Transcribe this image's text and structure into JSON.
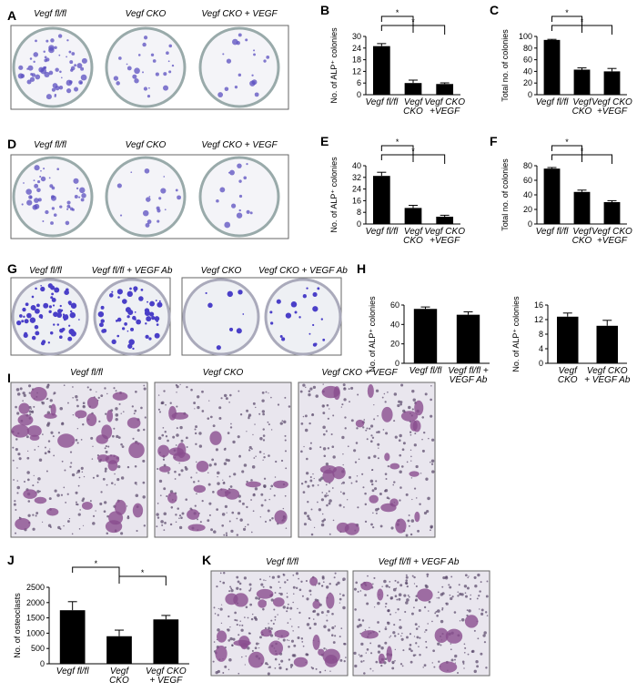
{
  "panels": [
    "A",
    "B",
    "C",
    "D",
    "E",
    "F",
    "G",
    "H",
    "I",
    "J",
    "K"
  ],
  "photos": {
    "A": [
      "Vegf fl/fl",
      "Vegf CKO",
      "Vegf CKO + VEGF"
    ],
    "D": [
      "Vegf fl/fl",
      "Vegf CKO",
      "Vegf CKO + VEGF"
    ],
    "G": [
      "Vegf fl/fl",
      "Vegf fl/fl + VEGF Ab",
      "Vegf CKO",
      "Vegf CKO + VEGF Ab"
    ],
    "I": [
      "Vegf fl/fl",
      "Vegf CKO",
      "Vegf CKO + VEGF"
    ],
    "K": [
      "Vegf fl/fl",
      "Vegf fl/fl + VEGF Ab"
    ]
  },
  "chart_data": [
    {
      "type": "bar",
      "ylabel": "No. of ALP⁺ colonies",
      "categories": [
        "Vegf fl/fl",
        "Vegf\nCKO",
        "Vegf CKO\n+VEGF"
      ],
      "values": [
        25,
        6,
        5.5
      ],
      "errors": [
        1.3,
        1.5,
        0.6
      ],
      "color": "#000000",
      "ylim": [
        0,
        30
      ],
      "yticks": [
        0,
        6,
        12,
        18,
        24,
        30
      ],
      "comparisons": [
        {
          "pair": [
            0,
            1
          ],
          "label": "*"
        },
        {
          "pair": [
            0,
            2
          ],
          "label": "*"
        }
      ]
    },
    {
      "type": "bar",
      "ylabel": "Total no. of colonies",
      "categories": [
        "Vegf fl/fl",
        "Vegf\nCKO",
        "Vegf CKO\n+VEGF"
      ],
      "values": [
        94,
        43,
        40
      ],
      "errors": [
        1,
        3,
        5
      ],
      "color": "#000000",
      "ylim": [
        0,
        100
      ],
      "yticks": [
        0,
        20,
        40,
        60,
        80,
        100
      ],
      "comparisons": [
        {
          "pair": [
            0,
            1
          ],
          "label": "*"
        },
        {
          "pair": [
            0,
            2
          ],
          "label": "*"
        }
      ]
    },
    {
      "type": "bar",
      "ylabel": "No. of ALP⁺ colonies",
      "categories": [
        "Vegf fl/fl",
        "Vegf\nCKO",
        "Vegf CKO\n+VEGF"
      ],
      "values": [
        33,
        11,
        5
      ],
      "errors": [
        2.5,
        1.8,
        1
      ],
      "color": "#000000",
      "ylim": [
        0,
        40
      ],
      "yticks": [
        0,
        8,
        16,
        24,
        32,
        40
      ],
      "comparisons": [
        {
          "pair": [
            0,
            1
          ],
          "label": "*"
        },
        {
          "pair": [
            0,
            2
          ],
          "label": "*"
        }
      ]
    },
    {
      "type": "bar",
      "ylabel": "Total no. of colonies",
      "categories": [
        "Vegf fl/fl",
        "Vegf\nCKO",
        "Vegf CKO\n+VEGF"
      ],
      "values": [
        76,
        44,
        30
      ],
      "errors": [
        1.5,
        2.5,
        2
      ],
      "color": "#000000",
      "ylim": [
        0,
        80
      ],
      "yticks": [
        0,
        20,
        40,
        60,
        80
      ],
      "comparisons": [
        {
          "pair": [
            0,
            1
          ],
          "label": "*"
        },
        {
          "pair": [
            0,
            2
          ],
          "label": "*"
        }
      ]
    },
    {
      "type": "bar",
      "ylabel": "No. of ALP⁺ colonies",
      "categories": [
        "Vegf fl/fl",
        "Vegf fl/fl +\nVEGF Ab"
      ],
      "values": [
        56,
        50
      ],
      "errors": [
        2,
        3
      ],
      "color": "#000000",
      "ylim": [
        0,
        60
      ],
      "yticks": [
        0,
        20,
        40,
        60
      ],
      "comparisons": []
    },
    {
      "type": "bar",
      "ylabel": "No. of ALP⁺ colonies",
      "categories": [
        "Vegf\nCKO",
        "Vegf CKO\n+ VEGF Ab"
      ],
      "values": [
        12.8,
        10.3
      ],
      "errors": [
        1,
        1.5
      ],
      "color": "#000000",
      "ylim": [
        0,
        16
      ],
      "yticks": [
        0,
        4,
        8,
        12,
        16
      ],
      "comparisons": []
    },
    {
      "type": "bar",
      "ylabel": "No. of osteoclasts",
      "categories": [
        "Vegf fl/fl",
        "Vegf\nCKO",
        "Vegf CKO\n+ VEGF"
      ],
      "values": [
        1750,
        900,
        1450
      ],
      "errors": [
        280,
        200,
        130
      ],
      "color": "#000000",
      "ylim": [
        0,
        2500
      ],
      "yticks": [
        0,
        500,
        1000,
        1500,
        2000,
        2500
      ],
      "comparisons": [
        {
          "pair": [
            0,
            1
          ],
          "label": "*"
        },
        {
          "pair": [
            1,
            2
          ],
          "label": "*"
        }
      ]
    }
  ]
}
